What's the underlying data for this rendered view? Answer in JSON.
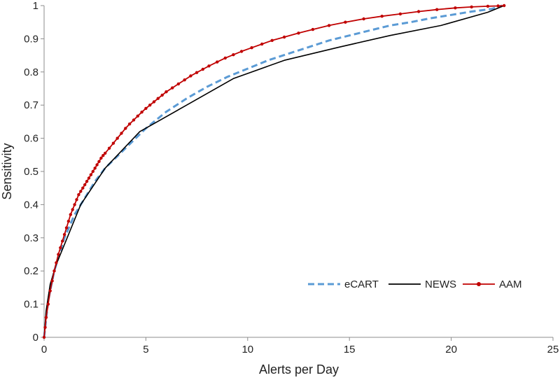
{
  "chart_data": {
    "type": "line",
    "title": "",
    "xlabel": "Alerts per Day",
    "ylabel": "Sensitivity",
    "xlim": [
      0,
      25
    ],
    "ylim": [
      0,
      1
    ],
    "x_ticks": [
      0,
      5,
      10,
      15,
      20,
      25
    ],
    "y_ticks": [
      0,
      0.1,
      0.2,
      0.3,
      0.4,
      0.5,
      0.6,
      0.7,
      0.8,
      0.9,
      1
    ],
    "x_tick_labels": [
      "0",
      "5",
      "10",
      "15",
      "20",
      "25"
    ],
    "y_tick_labels": [
      "0",
      "0.1",
      "0.2",
      "0.3",
      "0.4",
      "0.5",
      "0.6",
      "0.7",
      "0.8",
      "0.9",
      "1"
    ],
    "grid": false,
    "legend_position": "bottom-right",
    "series": [
      {
        "name": "eCART",
        "color": "#5b9bd5",
        "style": "dashed",
        "x": [
          0,
          0.2,
          0.5,
          1.0,
          1.5,
          2.0,
          2.5,
          3.0,
          3.5,
          4.0,
          5.0,
          6.0,
          7.0,
          8.0,
          9.0,
          10.0,
          11.0,
          12.0,
          13.0,
          14.0,
          15.0,
          16.0,
          17.0,
          18.0,
          19.0,
          20.0,
          21.0,
          22.0,
          22.5
        ],
        "y": [
          0,
          0.11,
          0.2,
          0.3,
          0.37,
          0.42,
          0.47,
          0.51,
          0.54,
          0.57,
          0.63,
          0.68,
          0.72,
          0.755,
          0.785,
          0.81,
          0.835,
          0.855,
          0.875,
          0.895,
          0.91,
          0.925,
          0.94,
          0.95,
          0.962,
          0.972,
          0.982,
          0.99,
          1.0
        ]
      },
      {
        "name": "NEWS",
        "color": "#000000",
        "style": "solid",
        "x": [
          0,
          0.1,
          0.3,
          0.6,
          1.0,
          1.8,
          3.0,
          4.7,
          7.0,
          9.3,
          11.8,
          14.5,
          17.0,
          19.5,
          21.8,
          22.6
        ],
        "y": [
          0,
          0.08,
          0.16,
          0.22,
          0.28,
          0.4,
          0.51,
          0.62,
          0.7,
          0.78,
          0.835,
          0.875,
          0.91,
          0.94,
          0.98,
          1.0
        ]
      },
      {
        "name": "AAM",
        "color": "#c00000",
        "style": "solid-markers",
        "x": [
          0,
          0.05,
          0.1,
          0.2,
          0.3,
          0.4,
          0.5,
          0.6,
          0.7,
          0.8,
          0.9,
          1.0,
          1.1,
          1.2,
          1.3,
          1.4,
          1.5,
          1.6,
          1.7,
          1.8,
          1.9,
          2.0,
          2.1,
          2.2,
          2.3,
          2.4,
          2.5,
          2.6,
          2.7,
          2.8,
          2.9,
          3.0,
          3.2,
          3.4,
          3.6,
          3.8,
          4.0,
          4.2,
          4.4,
          4.6,
          4.8,
          5.0,
          5.2,
          5.4,
          5.6,
          5.8,
          6.0,
          6.3,
          6.6,
          6.9,
          7.2,
          7.5,
          7.8,
          8.1,
          8.5,
          8.9,
          9.3,
          9.7,
          10.2,
          10.7,
          11.2,
          11.8,
          12.5,
          13.2,
          14.0,
          14.8,
          15.7,
          16.6,
          17.5,
          18.4,
          19.3,
          20.2,
          21.0,
          21.8,
          22.3,
          22.6
        ],
        "y": [
          0,
          0.03,
          0.06,
          0.1,
          0.14,
          0.17,
          0.2,
          0.225,
          0.25,
          0.27,
          0.29,
          0.31,
          0.33,
          0.35,
          0.37,
          0.385,
          0.4,
          0.415,
          0.43,
          0.44,
          0.45,
          0.46,
          0.47,
          0.48,
          0.49,
          0.5,
          0.51,
          0.52,
          0.53,
          0.54,
          0.548,
          0.555,
          0.57,
          0.585,
          0.6,
          0.615,
          0.63,
          0.643,
          0.655,
          0.667,
          0.679,
          0.69,
          0.7,
          0.71,
          0.72,
          0.73,
          0.74,
          0.752,
          0.764,
          0.776,
          0.788,
          0.798,
          0.808,
          0.818,
          0.83,
          0.842,
          0.852,
          0.862,
          0.873,
          0.884,
          0.895,
          0.905,
          0.917,
          0.928,
          0.94,
          0.95,
          0.96,
          0.968,
          0.975,
          0.982,
          0.988,
          0.993,
          0.996,
          0.998,
          0.999,
          1.0
        ]
      }
    ]
  }
}
